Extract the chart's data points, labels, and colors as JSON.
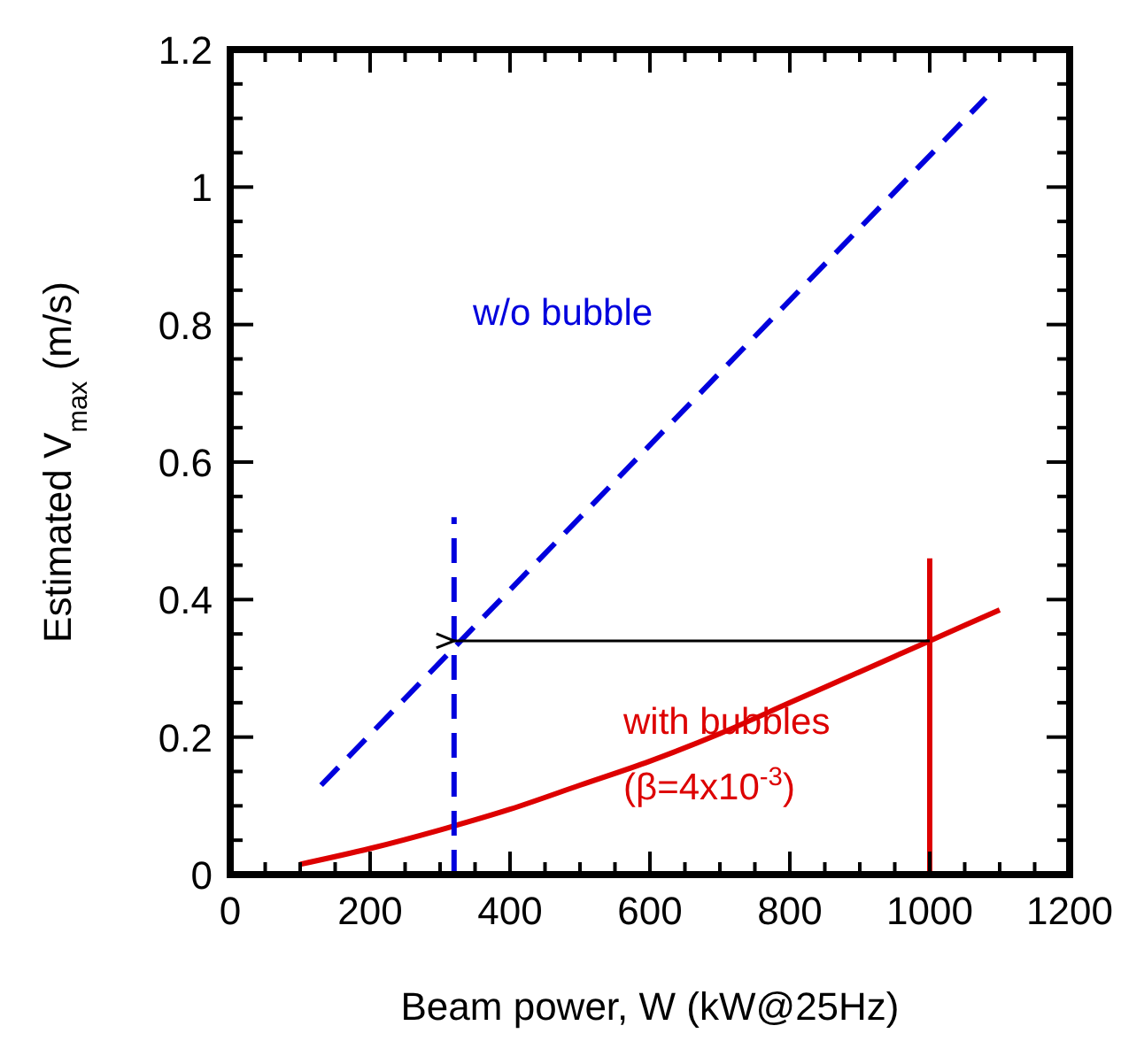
{
  "chart_data": {
    "type": "line",
    "xlabel": "Beam power, W (kW@25Hz)",
    "ylabel": "Estimated V$_{max}$ (m/s)",
    "xlim": [
      0,
      1200
    ],
    "ylim": [
      0,
      1.2
    ],
    "xticks": [
      0,
      {
        "value": 50,
        "label": null
      },
      {
        "value": 100,
        "label": null
      },
      {
        "value": 150,
        "label": null
      },
      200,
      {
        "value": 250,
        "label": null
      },
      {
        "value": 300,
        "label": null
      },
      {
        "value": 350,
        "label": null
      },
      400,
      {
        "value": 450,
        "label": null
      },
      {
        "value": 500,
        "label": null
      },
      {
        "value": 550,
        "label": null
      },
      600,
      {
        "value": 650,
        "label": null
      },
      {
        "value": 700,
        "label": null
      },
      {
        "value": 750,
        "label": null
      },
      800,
      {
        "value": 850,
        "label": null
      },
      {
        "value": 900,
        "label": null
      },
      {
        "value": 950,
        "label": null
      },
      1000,
      {
        "value": 1050,
        "label": null
      },
      {
        "value": 1100,
        "label": null
      },
      {
        "value": 1150,
        "label": null
      },
      1200
    ],
    "yticks": [
      0,
      {
        "value": 0.05,
        "label": null
      },
      {
        "value": 0.1,
        "label": null
      },
      {
        "value": 0.15,
        "label": null
      },
      0.2,
      {
        "value": 0.25,
        "label": null
      },
      {
        "value": 0.3,
        "label": null
      },
      {
        "value": 0.35,
        "label": null
      },
      0.4,
      {
        "value": 0.45,
        "label": null
      },
      {
        "value": 0.5,
        "label": null
      },
      {
        "value": 0.55,
        "label": null
      },
      0.6,
      {
        "value": 0.65,
        "label": null
      },
      {
        "value": 0.7,
        "label": null
      },
      {
        "value": 0.75,
        "label": null
      },
      0.8,
      {
        "value": 0.85,
        "label": null
      },
      {
        "value": 0.9,
        "label": null
      },
      {
        "value": 0.95,
        "label": null
      },
      1,
      {
        "value": 1.05,
        "label": null
      },
      {
        "value": 1.1,
        "label": null
      },
      {
        "value": 1.15,
        "label": null
      },
      1.2
    ],
    "grid": false,
    "legend": false,
    "marker": "none",
    "series": [
      {
        "name": "w/o bubble",
        "color": "#0000dd",
        "line_style": "dashed",
        "x": [
          130,
          1080
        ],
        "values": [
          0.13,
          1.13
        ]
      },
      {
        "name": "with bubbles (β=4x10$^{-3}$)",
        "color": "#dd0000",
        "line_style": "solid",
        "x": [
          100,
          200,
          300,
          400,
          500,
          600,
          700,
          800,
          900,
          1000,
          1100
        ],
        "values": [
          0.015,
          0.038,
          0.065,
          0.095,
          0.13,
          0.165,
          0.205,
          0.25,
          0.295,
          0.34,
          0.385
        ]
      },
      {
        "color": "#0000dd",
        "line_style": "dashed",
        "x": [
          320,
          320
        ],
        "values": [
          0,
          0.52
        ]
      },
      {
        "color": "#dd0000",
        "line_style": "solid",
        "x": [
          1000,
          1000
        ],
        "values": [
          0,
          0.46
        ]
      },
      {
        "color": "#000000",
        "line_style": "solid",
        "x": [
          1000,
          320
        ],
        "values": [
          0.34,
          0.34
        ]
      }
    ]
  }
}
